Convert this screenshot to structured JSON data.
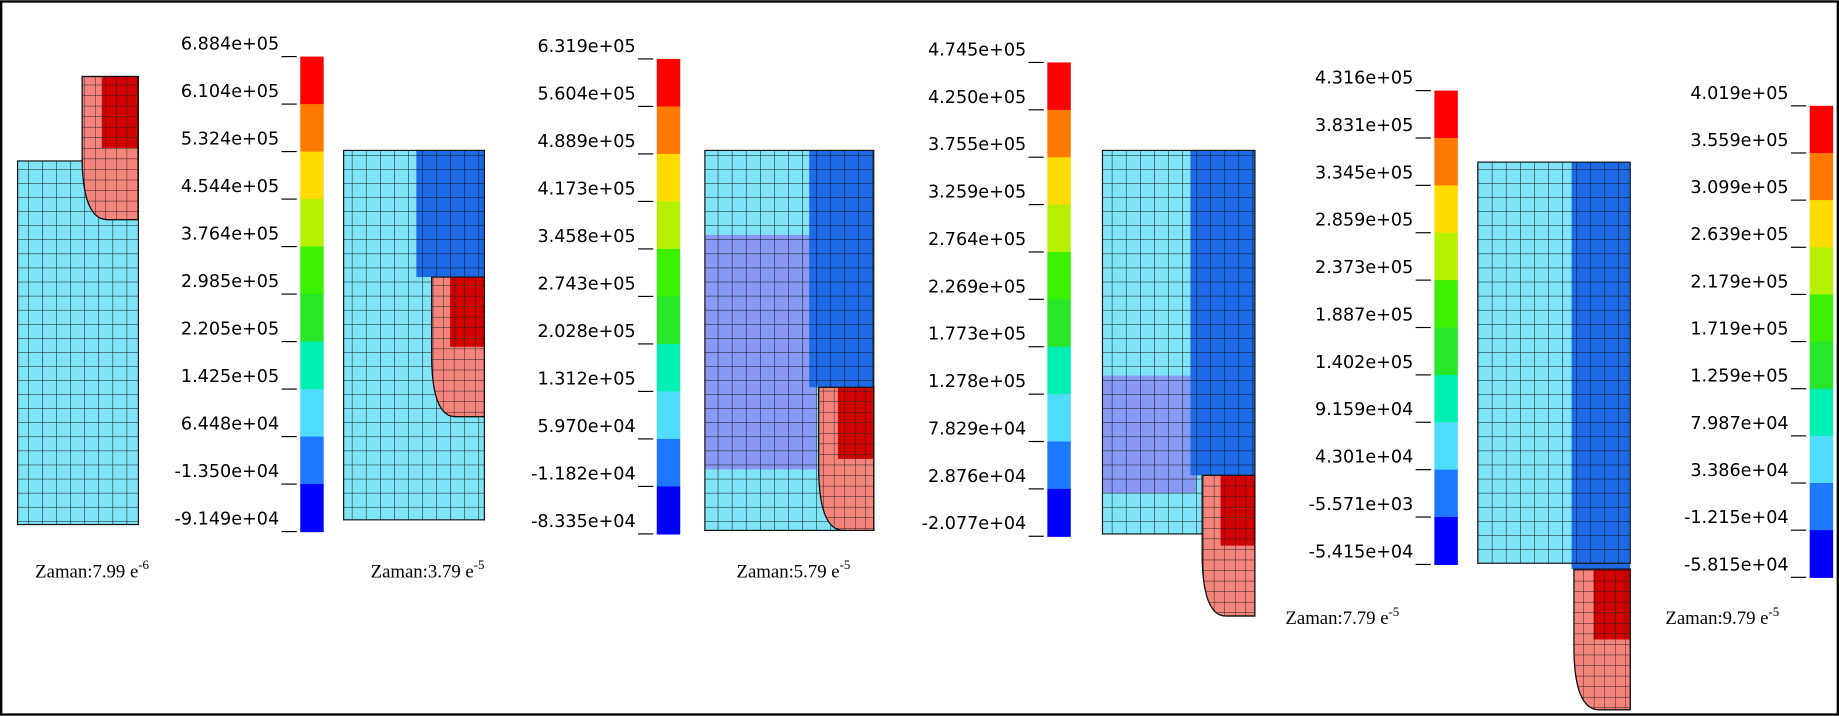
{
  "panels": [
    {
      "legend_labels": [
        "6.884e+05",
        "6.104e+05",
        "5.324e+05",
        "4.544e+05",
        "3.764e+05",
        "2.985e+05",
        "2.205e+05",
        "1.425e+05",
        "6.448e+04",
        "-1.350e+04",
        "-9.149e+04"
      ],
      "caption": {
        "text": "Zaman:7.99 e",
        "exponent": "-6"
      }
    },
    {
      "legend_labels": [
        "6.319e+05",
        "5.604e+05",
        "4.889e+05",
        "4.173e+05",
        "3.458e+05",
        "2.743e+05",
        "2.028e+05",
        "1.312e+05",
        "5.970e+04",
        "-1.182e+04",
        "-8.335e+04"
      ],
      "caption": {
        "text": "Zaman:3.79 e",
        "exponent": "-5"
      }
    },
    {
      "legend_labels": [
        "4.745e+05",
        "4.250e+05",
        "3.755e+05",
        "3.259e+05",
        "2.764e+05",
        "2.269e+05",
        "1.773e+05",
        "1.278e+05",
        "7.829e+04",
        "2.876e+04",
        "-2.077e+04"
      ],
      "caption": {
        "text": "Zaman:5.79 e",
        "exponent": "-5"
      }
    },
    {
      "legend_labels": [
        "4.316e+05",
        "3.831e+05",
        "3.345e+05",
        "2.859e+05",
        "2.373e+05",
        "1.887e+05",
        "1.402e+05",
        "9.159e+04",
        "4.301e+04",
        "-5.571e+03",
        "-5.415e+04"
      ],
      "caption": {
        "text": "Zaman:7.79 e",
        "exponent": "-5"
      }
    },
    {
      "legend_labels": [
        "4.019e+05",
        "3.559e+05",
        "3.099e+05",
        "2.639e+05",
        "2.179e+05",
        "1.719e+05",
        "1.259e+05",
        "7.987e+04",
        "3.386e+04",
        "-1.215e+04",
        "-5.815e+04"
      ],
      "caption": {
        "text": "Zaman:9.79 e",
        "exponent": "-5"
      }
    }
  ]
}
